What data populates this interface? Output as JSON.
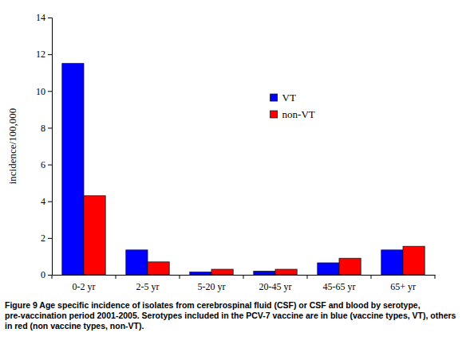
{
  "chart_data": {
    "type": "bar",
    "caption": "Figure 9 Age specific incidence of isolates from cerebrospinal fluid (CSF) or CSF and blood by serotype, pre-vaccination period 2001-2005. Serotypes included in the PCV-7 vaccine are in blue (vaccine types, VT), others in red (non vaccine types, non-VT).",
    "y_label": "incidence/100,000",
    "categories": [
      "0-2 yr",
      "2-5 yr",
      "5-20 yr",
      "20-45 yr",
      "45-65 yr",
      "65+ yr"
    ],
    "series": [
      {
        "name": "VT",
        "color": "#0000ff",
        "values": [
          11.5,
          1.35,
          0.15,
          0.2,
          0.65,
          1.35
        ]
      },
      {
        "name": "non-VT",
        "color": "#ff0000",
        "values": [
          4.3,
          0.7,
          0.3,
          0.3,
          0.9,
          1.55
        ]
      }
    ],
    "ylim": [
      0,
      14
    ],
    "yticks": [
      0,
      2,
      4,
      6,
      8,
      10,
      12,
      14
    ],
    "grid": false,
    "legend": "upper right"
  }
}
